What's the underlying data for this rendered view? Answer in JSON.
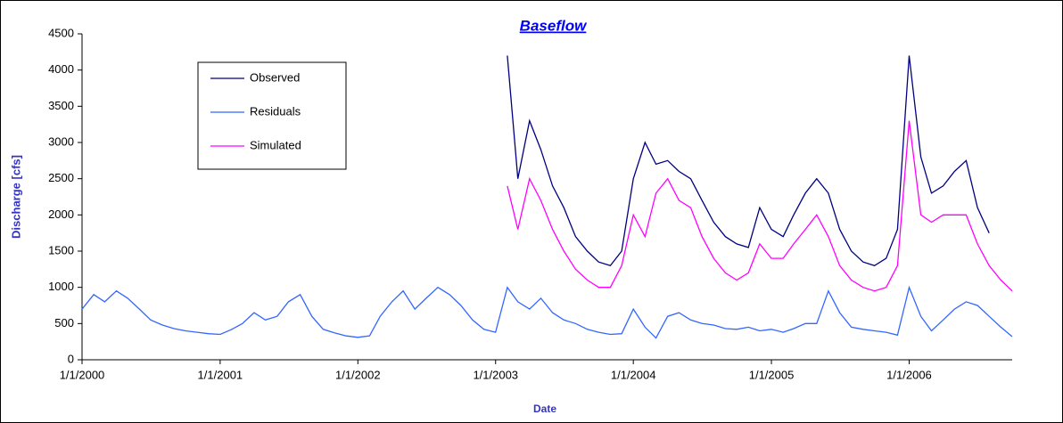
{
  "chart_data": {
    "type": "line",
    "title": "Baseflow",
    "x_label": "Date",
    "y_label": "Discharge [cfs]",
    "x": [
      "1/1/2000",
      "2/1/2000",
      "3/1/2000",
      "4/1/2000",
      "5/1/2000",
      "6/1/2000",
      "7/1/2000",
      "8/1/2000",
      "9/1/2000",
      "10/1/2000",
      "11/1/2000",
      "12/1/2000",
      "1/1/2001",
      "2/1/2001",
      "3/1/2001",
      "4/1/2001",
      "5/1/2001",
      "6/1/2001",
      "7/1/2001",
      "8/1/2001",
      "9/1/2001",
      "10/1/2001",
      "11/1/2001",
      "12/1/2001",
      "1/1/2002",
      "2/1/2002",
      "3/1/2002",
      "4/1/2002",
      "5/1/2002",
      "6/1/2002",
      "7/1/2002",
      "8/1/2002",
      "9/1/2002",
      "10/1/2002",
      "11/1/2002",
      "12/1/2002",
      "1/1/2003",
      "2/1/2003",
      "3/1/2003",
      "4/1/2003",
      "5/1/2003",
      "6/1/2003",
      "7/1/2003",
      "8/1/2003",
      "9/1/2003",
      "10/1/2003",
      "11/1/2003",
      "12/1/2003",
      "1/1/2004",
      "2/1/2004",
      "3/1/2004",
      "4/1/2004",
      "5/1/2004",
      "6/1/2004",
      "7/1/2004",
      "8/1/2004",
      "9/1/2004",
      "10/1/2004",
      "11/1/2004",
      "12/1/2004",
      "1/1/2005",
      "2/1/2005",
      "3/1/2005",
      "4/1/2005",
      "5/1/2005",
      "6/1/2005",
      "7/1/2005",
      "8/1/2005",
      "9/1/2005",
      "10/1/2005",
      "11/1/2005",
      "12/1/2005",
      "1/1/2006",
      "2/1/2006",
      "3/1/2006",
      "4/1/2006",
      "5/1/2006",
      "6/1/2006",
      "7/1/2006",
      "8/1/2006",
      "9/1/2006",
      "10/1/2006"
    ],
    "series": [
      {
        "name": "Observed",
        "color": "#000080",
        "values": [
          null,
          null,
          null,
          null,
          null,
          null,
          null,
          null,
          null,
          null,
          null,
          null,
          null,
          null,
          null,
          null,
          null,
          null,
          null,
          null,
          null,
          null,
          null,
          null,
          null,
          null,
          null,
          null,
          null,
          null,
          null,
          null,
          null,
          null,
          null,
          null,
          null,
          4200,
          2500,
          3300,
          2900,
          2400,
          2100,
          1700,
          1500,
          1350,
          1300,
          1500,
          2500,
          3000,
          2700,
          2750,
          2600,
          2500,
          2200,
          1900,
          1700,
          1600,
          1550,
          2100,
          1800,
          1700,
          2000,
          2300,
          2500,
          2300,
          1800,
          1500,
          1350,
          1300,
          1400,
          1800,
          4200,
          2800,
          2300,
          2400,
          2600,
          2750,
          2100,
          1750,
          null,
          null
        ]
      },
      {
        "name": "Residuals",
        "color": "#3366ff",
        "values": [
          700,
          900,
          800,
          950,
          850,
          700,
          550,
          480,
          430,
          400,
          380,
          360,
          350,
          420,
          500,
          650,
          550,
          600,
          800,
          900,
          600,
          420,
          370,
          330,
          310,
          330,
          600,
          800,
          950,
          700,
          850,
          1000,
          900,
          750,
          550,
          420,
          380,
          1000,
          800,
          700,
          850,
          650,
          550,
          500,
          420,
          380,
          350,
          360,
          700,
          450,
          300,
          600,
          650,
          550,
          500,
          480,
          430,
          420,
          450,
          400,
          420,
          380,
          430,
          500,
          500,
          950,
          650,
          450,
          420,
          400,
          380,
          340,
          1000,
          600,
          400,
          550,
          700,
          800,
          750,
          600,
          450,
          320
        ]
      },
      {
        "name": "Simulated",
        "color": "#ff00ff",
        "values": [
          null,
          null,
          null,
          null,
          null,
          null,
          null,
          null,
          null,
          null,
          null,
          null,
          null,
          null,
          null,
          null,
          null,
          null,
          null,
          null,
          null,
          null,
          null,
          null,
          null,
          null,
          null,
          null,
          null,
          null,
          null,
          null,
          null,
          null,
          null,
          null,
          null,
          2400,
          1800,
          2500,
          2200,
          1800,
          1500,
          1250,
          1100,
          1000,
          1000,
          1300,
          2000,
          1700,
          2300,
          2500,
          2200,
          2100,
          1700,
          1400,
          1200,
          1100,
          1200,
          1600,
          1400,
          1400,
          1600,
          1800,
          2000,
          1700,
          1300,
          1100,
          1000,
          950,
          1000,
          1300,
          3300,
          2000,
          1900,
          2000,
          2000,
          2000,
          1600,
          1300,
          1100,
          950
        ]
      }
    ],
    "xlim": [
      "1/1/2000",
      "10/1/2006"
    ],
    "xticks": [
      "1/1/2000",
      "1/1/2001",
      "1/1/2002",
      "1/1/2003",
      "1/1/2004",
      "1/1/2005",
      "1/1/2006"
    ],
    "ylim": [
      0,
      4500
    ],
    "yticks": [
      0,
      500,
      1000,
      1500,
      2000,
      2500,
      3000,
      3500,
      4000,
      4500
    ],
    "grid": false,
    "legend": "upper left"
  }
}
